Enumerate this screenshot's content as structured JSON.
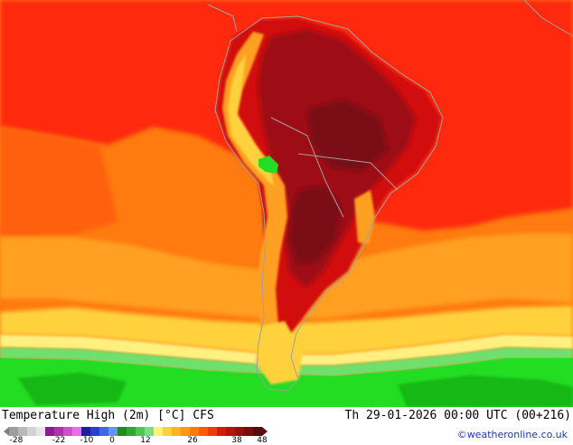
{
  "header": {
    "title": "Temperature High (2m) [°C] CFS",
    "datetime": "Th 29-01-2026 00:00 UTC (00+216)"
  },
  "credit": "©weatheronline.co.uk",
  "legend": {
    "ticks": [
      "-28",
      "-22",
      "-10",
      "0",
      "12",
      "26",
      "38",
      "48"
    ],
    "colors": [
      "#9e9e9e",
      "#b8b8b8",
      "#d2d2d2",
      "#e6e6e6",
      "#8e1e8e",
      "#b42eb4",
      "#d24cd2",
      "#ea6eea",
      "#1e1e9e",
      "#2e3ecc",
      "#3e66ea",
      "#5e96f6",
      "#1e8c1e",
      "#2ea82e",
      "#4cc84c",
      "#7ae07a",
      "#fff078",
      "#ffd23c",
      "#ffb41e",
      "#ff9614",
      "#ff780a",
      "#ff5a05",
      "#f03c05",
      "#d21e05",
      "#b4140a",
      "#96100a",
      "#7a0c0c",
      "#5a0c0c"
    ]
  },
  "map": {
    "region": "South America",
    "colors": {
      "ocean_background": "#ff7a0f",
      "subtropical": "#ff6010",
      "tropical": "#ff2a0a",
      "continent_hot": "#d20e0e",
      "continent_core": "#9e0e14",
      "continent_peak": "#7a0c12",
      "mid_latitude": "#ffa020",
      "cool_band": "#ffd23c",
      "pale_band": "#fff080",
      "green_light": "#6ee06e",
      "green_bright": "#22dd22",
      "green_deep": "#16b816",
      "coastline": "#a0a0a0"
    }
  }
}
